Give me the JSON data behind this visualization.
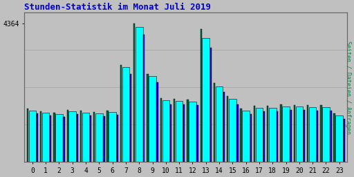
{
  "title": "Stunden-Statistik im Monat Juli 2019",
  "ylabel": "Seiten / Dateien / Anfragen",
  "hours": [
    "0",
    "1",
    "2",
    "3",
    "4",
    "5",
    "6",
    "7",
    "8",
    "9",
    "10",
    "11",
    "12",
    "13",
    "14",
    "15",
    "16",
    "17",
    "18",
    "19",
    "20",
    "21",
    "22",
    "23"
  ],
  "ytick_label": "4364",
  "ytick_value": 4364,
  "background_color": "#c0c0c0",
  "title_color": "#0000cc",
  "ylabel_color": "#008040",
  "bar_cyan": "#00ffff",
  "bar_teal": "#006040",
  "bar_blue": "#0000cc",
  "teal_vals": [
    1670,
    1600,
    1560,
    1640,
    1610,
    1580,
    1620,
    3050,
    4364,
    2780,
    2000,
    1980,
    1960,
    4180,
    2480,
    2080,
    1680,
    1760,
    1770,
    1810,
    1800,
    1790,
    1790,
    1530
  ],
  "cyan_vals": [
    1620,
    1550,
    1510,
    1590,
    1560,
    1530,
    1570,
    2980,
    4250,
    2700,
    1940,
    1920,
    1900,
    3900,
    2380,
    1980,
    1620,
    1700,
    1710,
    1750,
    1740,
    1730,
    1730,
    1470
  ],
  "blue_vals": [
    1530,
    1460,
    1420,
    1500,
    1470,
    1440,
    1480,
    2760,
    4000,
    2500,
    1820,
    1810,
    1790,
    3600,
    2200,
    1820,
    1510,
    1590,
    1600,
    1640,
    1630,
    1620,
    1620,
    1360
  ],
  "ylim_max": 4700,
  "grid_vals": [
    1175,
    2350,
    3525,
    4700
  ]
}
